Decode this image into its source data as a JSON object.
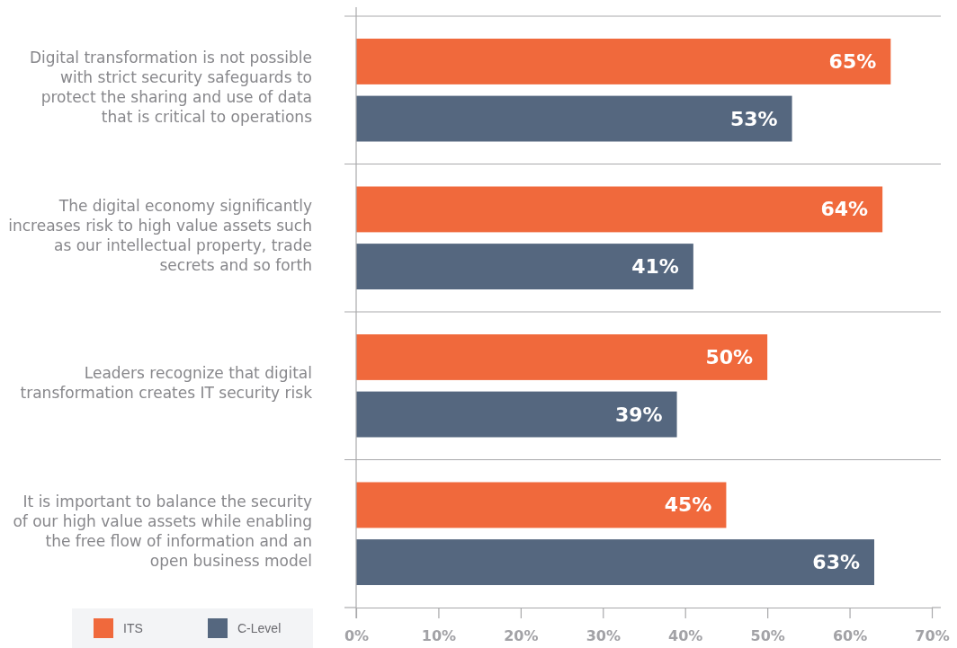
{
  "chart_data": {
    "type": "bar",
    "orientation": "horizontal",
    "categories": [
      "Digital transformation is not possible with strict security safeguards to protect the sharing and use of data that is critical to operations",
      "The digital economy significantly increases risk to high value assets such as our intellectual property, trade secrets and so forth",
      "Leaders recognize that digital transformation creates IT security risk",
      "It is important to balance the security of our high value assets while enabling the free flow of information and an open business model"
    ],
    "series": [
      {
        "name": "ITS",
        "color": "#f0693c",
        "values": [
          65,
          64,
          50,
          45
        ],
        "value_labels": [
          "65%",
          "64%",
          "50%",
          "45%"
        ]
      },
      {
        "name": "C-Level",
        "color": "#55677f",
        "values": [
          53,
          41,
          39,
          63
        ],
        "value_labels": [
          "53%",
          "41%",
          "39%",
          "63%"
        ]
      }
    ],
    "xlim": [
      0,
      70
    ],
    "xticks": [
      {
        "value": 0,
        "label": "0%"
      },
      {
        "value": 10,
        "label": "10%"
      },
      {
        "value": 20,
        "label": "20%"
      },
      {
        "value": 30,
        "label": "30%"
      },
      {
        "value": 40,
        "label": "40%"
      },
      {
        "value": 50,
        "label": "50%"
      },
      {
        "value": 60,
        "label": "60%"
      },
      {
        "value": 70,
        "label": "70%"
      }
    ],
    "grid": "y",
    "legend": "bottom left"
  }
}
